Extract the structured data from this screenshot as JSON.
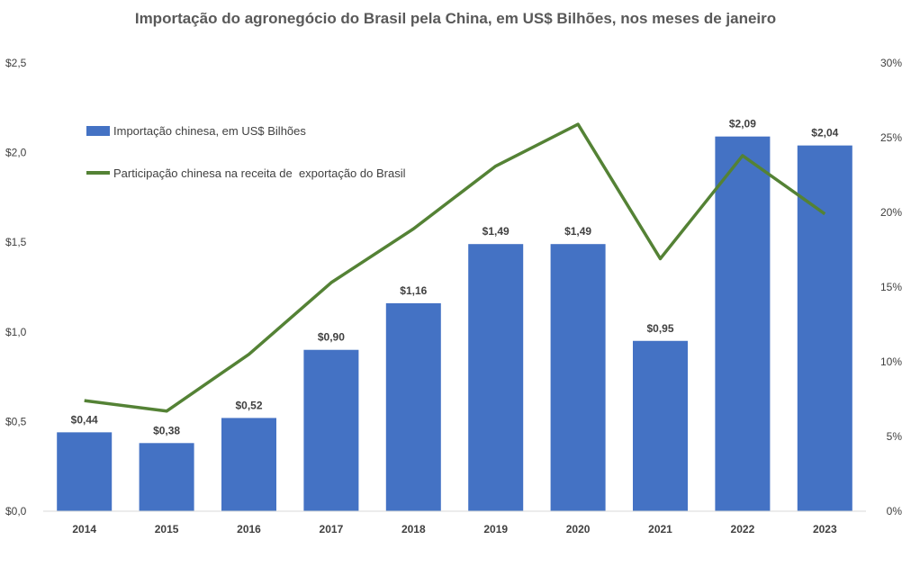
{
  "chart_data": {
    "type": "bar",
    "title": "Importação do agronegócio do Brasil pela China, em US$ Bilhões, nos meses de janeiro",
    "categories": [
      "2014",
      "2015",
      "2016",
      "2017",
      "2018",
      "2019",
      "2020",
      "2021",
      "2022",
      "2023"
    ],
    "series": [
      {
        "name": "Importação chinesa, em US$ Bilhões",
        "type": "bar",
        "axis": "left",
        "color": "#4472C4",
        "values": [
          0.44,
          0.38,
          0.52,
          0.9,
          1.16,
          1.49,
          1.49,
          0.95,
          2.09,
          2.04
        ],
        "labels": [
          "$0,44",
          "$0,38",
          "$0,52",
          "$0,90",
          "$1,16",
          "$1,49",
          "$1,49",
          "$0,95",
          "$2,09",
          "$2,04"
        ]
      },
      {
        "name": "Participação chinesa na receita de  exportação do Brasil",
        "type": "line",
        "axis": "right",
        "color": "#548235",
        "values": [
          7.4,
          6.7,
          10.5,
          15.3,
          18.9,
          23.1,
          25.9,
          16.9,
          23.8,
          19.9
        ]
      }
    ],
    "y_left": {
      "range": [
        0,
        2.5
      ],
      "ticks": [
        0,
        0.5,
        1.0,
        1.5,
        2.0,
        2.5
      ],
      "tick_labels": [
        "$0,0",
        "$0,5",
        "$1,0",
        "$1,5",
        "$2,0",
        "$2,5"
      ]
    },
    "y_right": {
      "range": [
        0,
        30
      ],
      "ticks": [
        0,
        5,
        10,
        15,
        20,
        25,
        30
      ],
      "tick_labels": [
        "0%",
        "5%",
        "10%",
        "15%",
        "20%",
        "25%",
        "30%"
      ]
    },
    "grid": false,
    "legend_position": "top-left"
  }
}
